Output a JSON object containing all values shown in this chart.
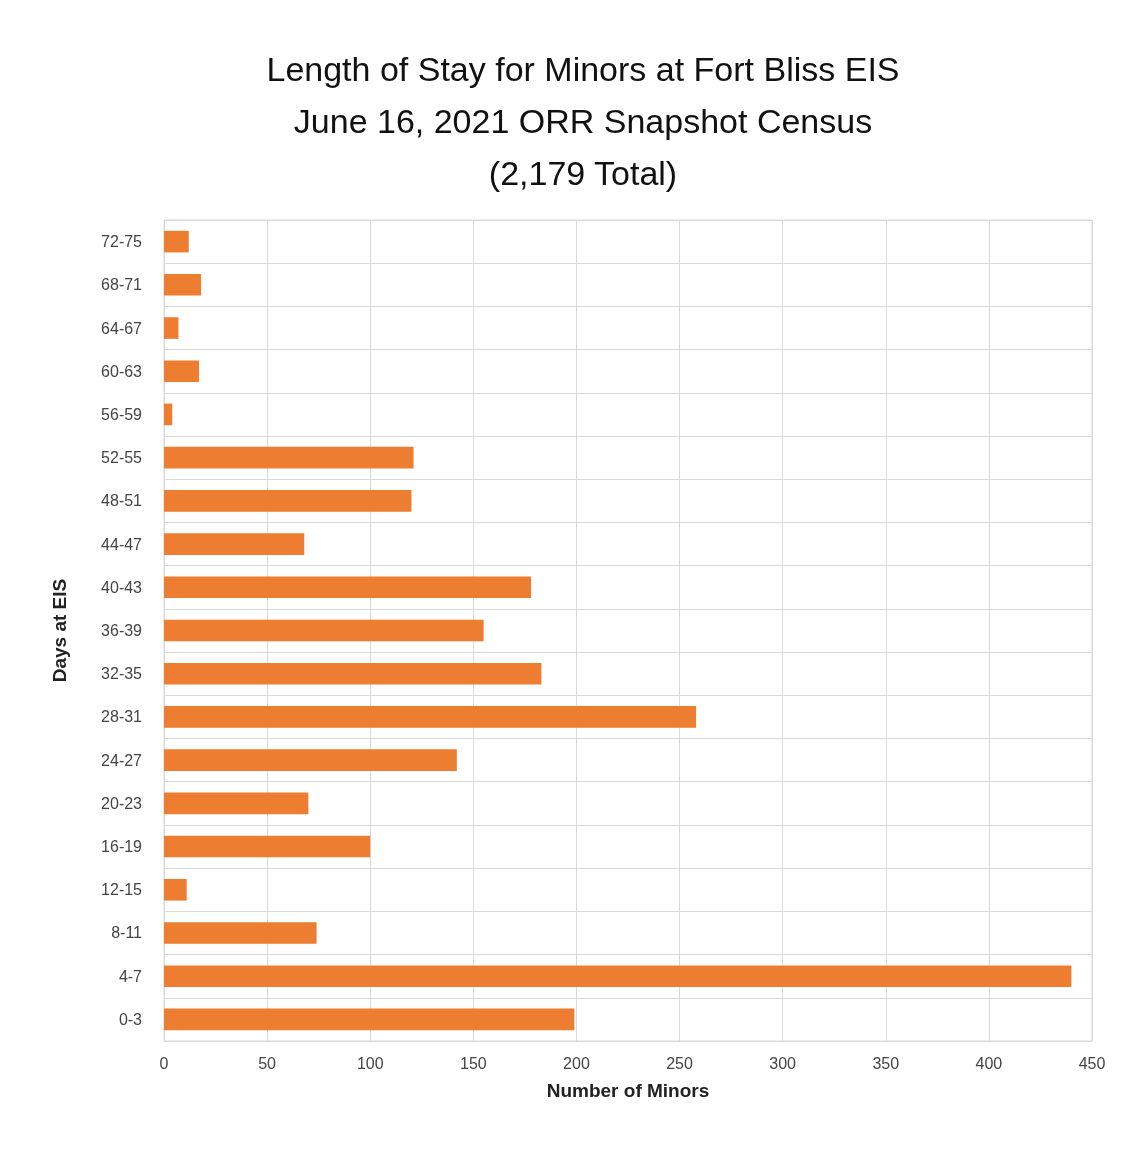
{
  "chart_data": {
    "type": "bar",
    "orientation": "horizontal",
    "title": "Length of Stay for Minors at Fort Bliss EIS\nJune 16, 2021 ORR Snapshot Census\n(2,179 Total)",
    "xlabel": "Number of Minors",
    "ylabel": "Days at EIS",
    "categories": [
      "72-75",
      "68-71",
      "64-67",
      "60-63",
      "56-59",
      "52-55",
      "48-51",
      "44-47",
      "40-43",
      "36-39",
      "32-35",
      "28-31",
      "24-27",
      "20-23",
      "16-19",
      "12-15",
      "8-11",
      "4-7",
      "0-3"
    ],
    "values": [
      12,
      18,
      7,
      17,
      4,
      121,
      120,
      68,
      178,
      155,
      183,
      258,
      142,
      70,
      100,
      11,
      74,
      440,
      199
    ],
    "color": "#ed7d31",
    "xlim": [
      0,
      450
    ],
    "xticks": [
      0,
      50,
      100,
      150,
      200,
      250,
      300,
      350,
      400,
      450
    ],
    "grid": true
  }
}
